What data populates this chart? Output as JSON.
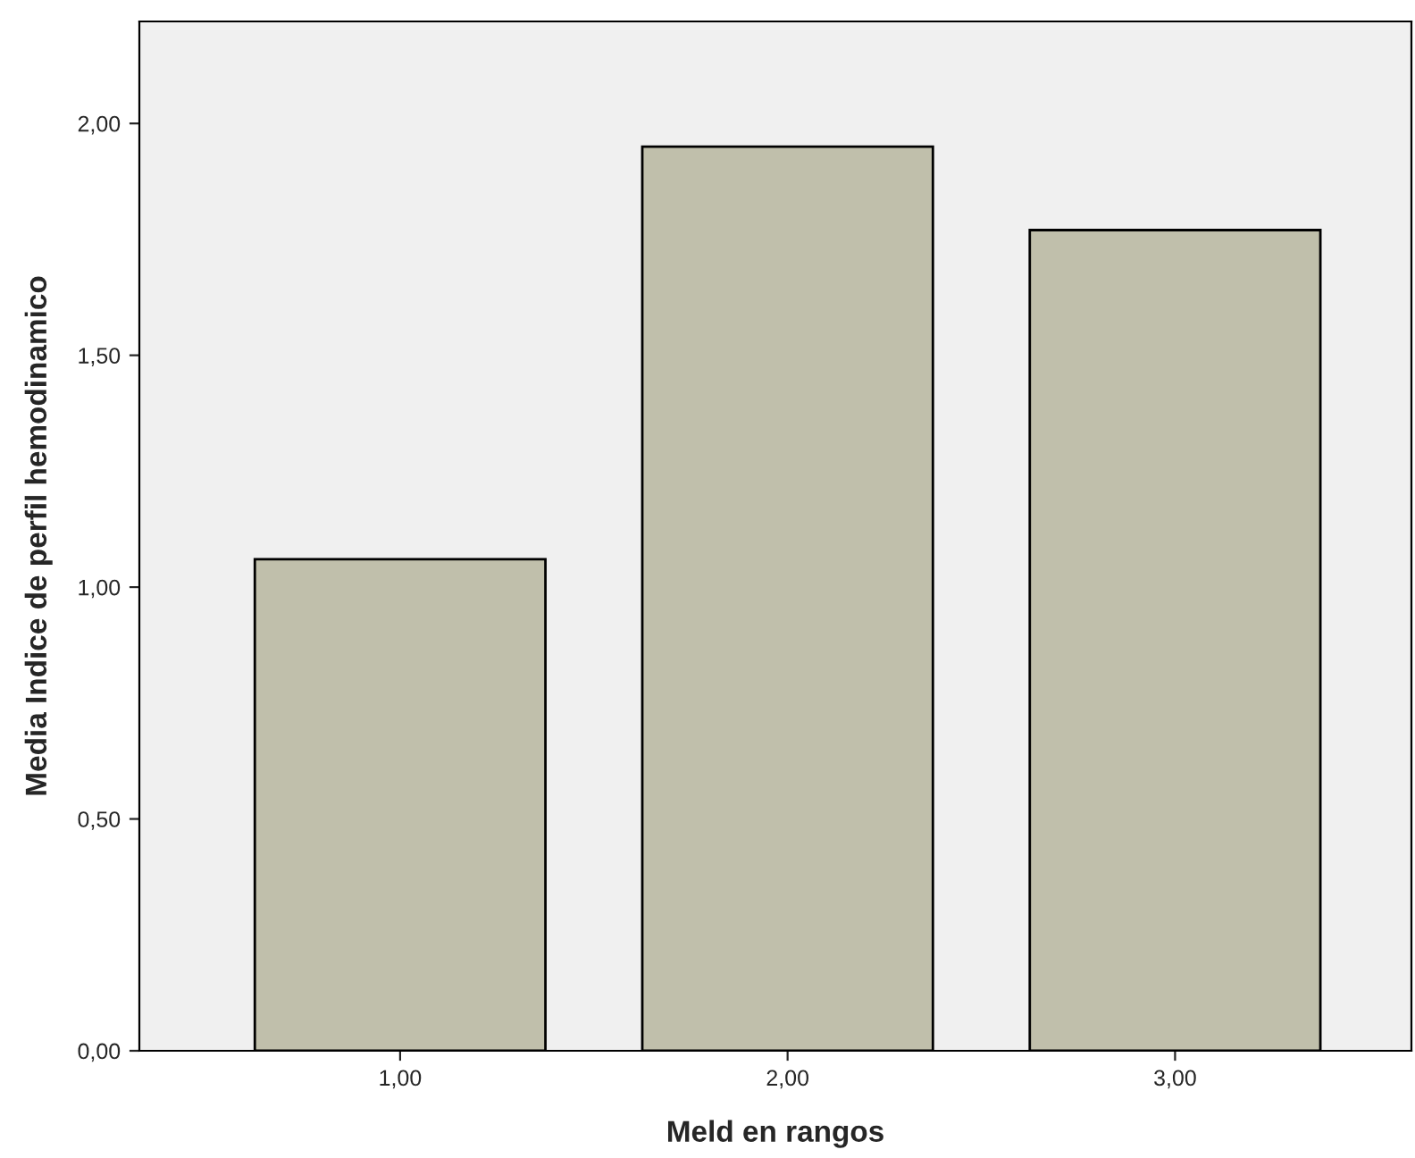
{
  "chart_data": {
    "type": "bar",
    "xlabel": "Meld en rangos",
    "ylabel": "Media Indice de perfil hemodinamico",
    "categories": [
      "1,00",
      "2,00",
      "3,00"
    ],
    "values": [
      1.06,
      1.95,
      1.77
    ],
    "color": "#c0bfab",
    "ylim": [
      0,
      2.22
    ],
    "yticks": [
      {
        "value": 0,
        "label": "0,00"
      },
      {
        "value": 0.5,
        "label": "0,50"
      },
      {
        "value": 1,
        "label": "1,00"
      },
      {
        "value": 1.5,
        "label": "1,50"
      },
      {
        "value": 2,
        "label": "2,00"
      }
    ],
    "grid": false
  }
}
